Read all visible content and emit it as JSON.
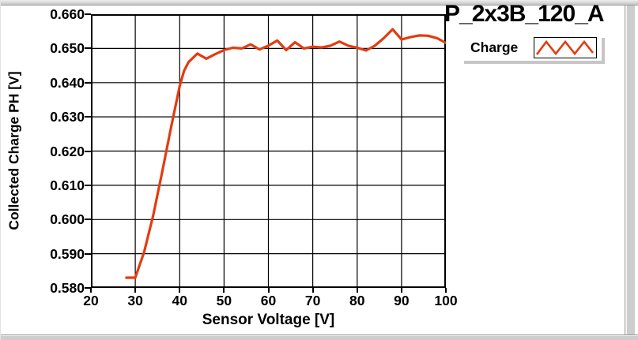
{
  "window": {
    "chrome": {
      "top_bar": "window-edge",
      "right_bar": "window-edge",
      "bottom_bar": "window-edge"
    }
  },
  "chart_data": {
    "type": "line",
    "title": "P_2x3B_120_A",
    "xlabel": "Sensor Voltage [V]",
    "ylabel": "Collected Charge PH [V]",
    "xlim": [
      20,
      100
    ],
    "ylim": [
      0.58,
      0.66
    ],
    "x_ticks": [
      20,
      30,
      40,
      50,
      60,
      70,
      80,
      90,
      100
    ],
    "x_tick_labels": [
      "20",
      "30",
      "40",
      "50",
      "60",
      "70",
      "80",
      "90",
      "100"
    ],
    "y_ticks": [
      0.58,
      0.59,
      0.6,
      0.61,
      0.62,
      0.63,
      0.64,
      0.65,
      0.66
    ],
    "y_tick_labels": [
      "0.580",
      "0.590",
      "0.600",
      "0.610",
      "0.620",
      "0.630",
      "0.640",
      "0.650",
      "0.660"
    ],
    "grid": true,
    "legend_position": "top-right-outside",
    "series": [
      {
        "name": "Charge",
        "color": "#e23c10",
        "x": [
          28,
          30,
          32,
          34,
          36,
          38,
          40,
          41,
          42,
          44,
          46,
          48,
          50,
          52,
          54,
          56,
          58,
          60,
          62,
          64,
          66,
          68,
          70,
          72,
          74,
          76,
          78,
          80,
          82,
          84,
          86,
          88,
          90,
          92,
          94,
          96,
          98,
          100
        ],
        "y": [
          0.583,
          0.583,
          0.5905,
          0.601,
          0.6135,
          0.6265,
          0.639,
          0.6435,
          0.646,
          0.6485,
          0.647,
          0.6483,
          0.6495,
          0.6502,
          0.65,
          0.6512,
          0.6497,
          0.6508,
          0.6523,
          0.6495,
          0.6518,
          0.65,
          0.6505,
          0.6503,
          0.6508,
          0.652,
          0.6508,
          0.6502,
          0.6494,
          0.6508,
          0.653,
          0.6556,
          0.6526,
          0.6533,
          0.6538,
          0.6537,
          0.653,
          0.6516
        ]
      }
    ]
  },
  "legend": {
    "label": "Charge"
  },
  "colors": {
    "trace": "#e23c10",
    "grid": "#000000",
    "plot_bg": "#ffffff",
    "panel_bg": "#ffffff",
    "chrome_gray": "#cdcdcd"
  }
}
